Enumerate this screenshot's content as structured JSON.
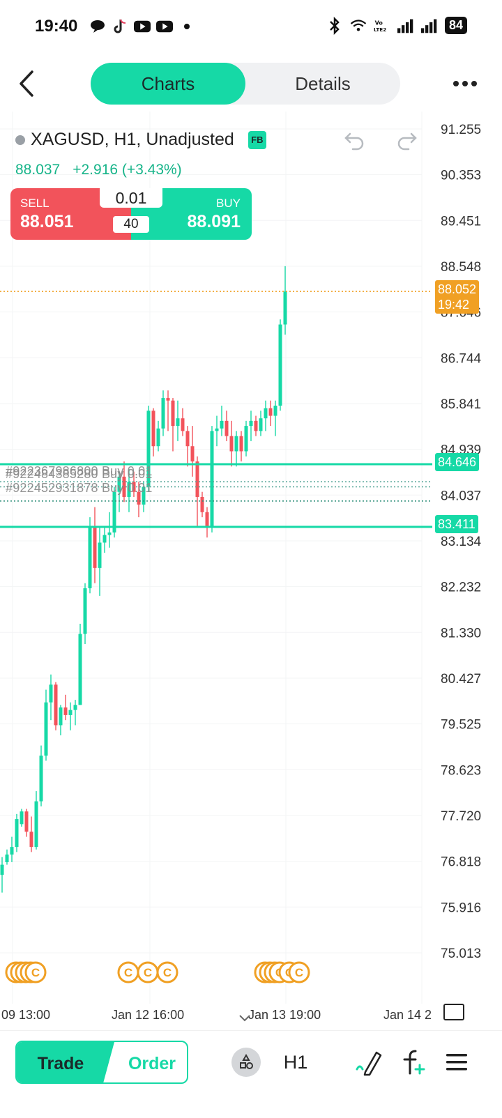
{
  "status_bar": {
    "time": "19:40",
    "battery": "84"
  },
  "header": {
    "tab_charts": "Charts",
    "tab_details": "Details"
  },
  "chart": {
    "symbol": "XAGUSD, H1, Unadjusted",
    "badge": "FB",
    "last_price": "88.037",
    "change": "+2.916 (+3.43%)",
    "trade_widget": {
      "sell_label": "SELL",
      "sell_price": "88.051",
      "buy_label": "BUY",
      "buy_price": "88.091",
      "lot": "0.01",
      "spread": "40"
    },
    "current_price_tag": {
      "price": "88.052",
      "countdown": "19:42",
      "color": "#f0a024"
    },
    "line_tag_upper": "84.646",
    "line_tag_lower": "83.411",
    "order_labels": [
      "#922367986800 Buy 0.01",
      "#922484385280 Buy 0.01",
      "#922452931878 Buy 0.01"
    ],
    "x_labels": [
      "09 13:00",
      "Jan 12 16:00",
      "Jan 13 19:00",
      "Jan 14 2"
    ]
  },
  "chart_data": {
    "type": "candlestick",
    "yticks": [
      "91.255",
      "90.353",
      "89.451",
      "88.548",
      "87.646",
      "86.744",
      "85.841",
      "84.939",
      "84.037",
      "83.134",
      "82.232",
      "81.330",
      "80.427",
      "79.525",
      "78.623",
      "77.720",
      "76.818",
      "75.916",
      "75.013"
    ],
    "ylim": [
      75.013,
      91.255
    ],
    "up_color": "#16d9a6",
    "down_color": "#f2535b",
    "candles": [
      {
        "o": 76.55,
        "h": 76.9,
        "l": 76.2,
        "c": 76.75
      },
      {
        "o": 76.8,
        "h": 77.05,
        "l": 76.75,
        "c": 76.95
      },
      {
        "o": 76.95,
        "h": 77.3,
        "l": 76.8,
        "c": 77.1
      },
      {
        "o": 77.1,
        "h": 77.75,
        "l": 77.0,
        "c": 77.65
      },
      {
        "o": 77.55,
        "h": 77.85,
        "l": 77.5,
        "c": 77.8
      },
      {
        "o": 77.8,
        "h": 77.85,
        "l": 77.3,
        "c": 77.4
      },
      {
        "o": 77.4,
        "h": 77.7,
        "l": 77.0,
        "c": 77.1
      },
      {
        "o": 77.1,
        "h": 78.2,
        "l": 77.05,
        "c": 78.0
      },
      {
        "o": 78.0,
        "h": 79.1,
        "l": 77.9,
        "c": 78.9
      },
      {
        "o": 78.9,
        "h": 80.2,
        "l": 78.8,
        "c": 79.95
      },
      {
        "o": 79.95,
        "h": 80.5,
        "l": 79.6,
        "c": 80.3
      },
      {
        "o": 80.3,
        "h": 80.35,
        "l": 79.4,
        "c": 79.5
      },
      {
        "o": 79.5,
        "h": 79.9,
        "l": 79.3,
        "c": 79.85
      },
      {
        "o": 79.85,
        "h": 80.1,
        "l": 79.6,
        "c": 79.7
      },
      {
        "o": 79.7,
        "h": 79.95,
        "l": 79.4,
        "c": 79.8
      },
      {
        "o": 79.8,
        "h": 80.0,
        "l": 79.5,
        "c": 79.9
      },
      {
        "o": 79.9,
        "h": 81.5,
        "l": 79.9,
        "c": 81.3
      },
      {
        "o": 81.3,
        "h": 82.3,
        "l": 81.1,
        "c": 82.2
      },
      {
        "o": 82.2,
        "h": 83.6,
        "l": 82.1,
        "c": 83.4
      },
      {
        "o": 83.4,
        "h": 83.8,
        "l": 82.3,
        "c": 82.6
      },
      {
        "o": 82.6,
        "h": 83.4,
        "l": 82.05,
        "c": 83.1
      },
      {
        "o": 83.1,
        "h": 83.4,
        "l": 82.9,
        "c": 83.25
      },
      {
        "o": 83.25,
        "h": 83.7,
        "l": 83.0,
        "c": 83.3
      },
      {
        "o": 83.3,
        "h": 84.2,
        "l": 83.2,
        "c": 84.1
      },
      {
        "o": 84.1,
        "h": 84.5,
        "l": 83.7,
        "c": 84.4
      },
      {
        "o": 84.4,
        "h": 84.7,
        "l": 83.9,
        "c": 84.0
      },
      {
        "o": 84.0,
        "h": 84.55,
        "l": 83.7,
        "c": 84.3
      },
      {
        "o": 84.3,
        "h": 84.5,
        "l": 84.0,
        "c": 84.1
      },
      {
        "o": 84.1,
        "h": 84.3,
        "l": 83.6,
        "c": 83.85
      },
      {
        "o": 83.85,
        "h": 84.3,
        "l": 83.7,
        "c": 84.2
      },
      {
        "o": 84.2,
        "h": 85.8,
        "l": 84.1,
        "c": 85.7
      },
      {
        "o": 85.7,
        "h": 85.75,
        "l": 84.8,
        "c": 85.0
      },
      {
        "o": 85.0,
        "h": 85.5,
        "l": 84.9,
        "c": 85.35
      },
      {
        "o": 85.35,
        "h": 86.1,
        "l": 85.2,
        "c": 85.95
      },
      {
        "o": 85.95,
        "h": 86.1,
        "l": 85.3,
        "c": 85.9
      },
      {
        "o": 85.9,
        "h": 85.95,
        "l": 84.9,
        "c": 85.4
      },
      {
        "o": 85.4,
        "h": 85.9,
        "l": 85.1,
        "c": 85.55
      },
      {
        "o": 85.55,
        "h": 85.75,
        "l": 85.2,
        "c": 85.3
      },
      {
        "o": 85.3,
        "h": 85.4,
        "l": 84.6,
        "c": 85.0
      },
      {
        "o": 85.0,
        "h": 85.4,
        "l": 84.4,
        "c": 84.7
      },
      {
        "o": 84.7,
        "h": 84.8,
        "l": 83.4,
        "c": 84.0
      },
      {
        "o": 84.0,
        "h": 84.1,
        "l": 83.6,
        "c": 83.7
      },
      {
        "o": 83.7,
        "h": 83.8,
        "l": 83.2,
        "c": 83.4
      },
      {
        "o": 83.4,
        "h": 85.4,
        "l": 83.3,
        "c": 85.3
      },
      {
        "o": 85.3,
        "h": 85.6,
        "l": 85.0,
        "c": 85.35
      },
      {
        "o": 85.35,
        "h": 85.8,
        "l": 85.2,
        "c": 85.5
      },
      {
        "o": 85.5,
        "h": 85.7,
        "l": 85.1,
        "c": 85.2
      },
      {
        "o": 85.2,
        "h": 85.5,
        "l": 84.6,
        "c": 84.9
      },
      {
        "o": 84.9,
        "h": 85.3,
        "l": 84.6,
        "c": 85.2
      },
      {
        "o": 85.2,
        "h": 85.3,
        "l": 84.7,
        "c": 84.9
      },
      {
        "o": 84.9,
        "h": 85.5,
        "l": 84.8,
        "c": 85.4
      },
      {
        "o": 85.4,
        "h": 85.7,
        "l": 85.1,
        "c": 85.5
      },
      {
        "o": 85.5,
        "h": 85.6,
        "l": 85.2,
        "c": 85.3
      },
      {
        "o": 85.3,
        "h": 85.7,
        "l": 85.2,
        "c": 85.55
      },
      {
        "o": 85.55,
        "h": 85.9,
        "l": 85.3,
        "c": 85.75
      },
      {
        "o": 85.75,
        "h": 85.9,
        "l": 85.4,
        "c": 85.6
      },
      {
        "o": 85.6,
        "h": 85.9,
        "l": 85.2,
        "c": 85.8
      },
      {
        "o": 85.8,
        "h": 87.5,
        "l": 85.7,
        "c": 87.4
      },
      {
        "o": 87.4,
        "h": 88.55,
        "l": 87.2,
        "c": 88.05
      }
    ],
    "horizontal_lines": [
      {
        "price": 84.646,
        "style": "solid",
        "color": "#16d9a6"
      },
      {
        "price": 83.411,
        "style": "solid",
        "color": "#16d9a6"
      },
      {
        "price": 88.052,
        "style": "dotted",
        "color": "#f0a024"
      },
      {
        "price": 84.3,
        "style": "dotted",
        "color": "#5aa89a"
      },
      {
        "price": 84.2,
        "style": "dotted",
        "color": "#5aa89a"
      },
      {
        "price": 83.92,
        "style": "dotted",
        "color": "#2e8f7a"
      }
    ],
    "markers": {
      "symbol": "C",
      "color": "#f0a024",
      "candle_indices": [
        0,
        1,
        2,
        3,
        4,
        23,
        27,
        31,
        51,
        52,
        53,
        54,
        56,
        58
      ]
    }
  },
  "bottom_bar": {
    "tab_trade": "Trade",
    "tab_order": "Order",
    "timeframe": "H1"
  }
}
